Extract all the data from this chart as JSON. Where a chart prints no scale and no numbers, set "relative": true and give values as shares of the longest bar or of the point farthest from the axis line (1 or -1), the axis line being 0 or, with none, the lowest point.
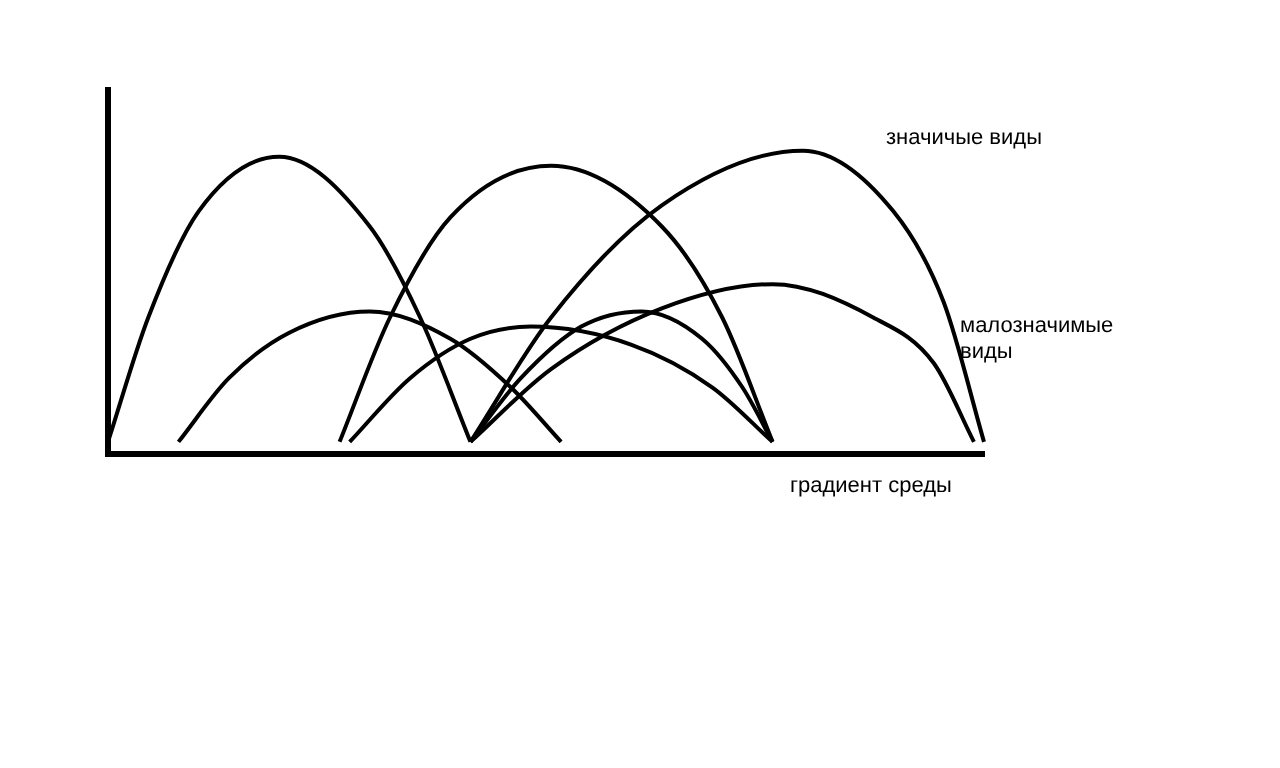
{
  "chart_data": {
    "type": "line",
    "relative": true,
    "xlabel": "градиент среды",
    "annotations": [
      "значичые виды",
      "малозначимые виды"
    ],
    "marker": "none",
    "grid": false,
    "legend": false,
    "categories": [
      null,
      null,
      null,
      null,
      null,
      null,
      null,
      null,
      null,
      null,
      null,
      null,
      null,
      null,
      null,
      null,
      null,
      null,
      null,
      null,
      null,
      null,
      null,
      null,
      null,
      null,
      null,
      null,
      null,
      null,
      null,
      null,
      null,
      null,
      null,
      null,
      null,
      null,
      null,
      null,
      null,
      null,
      null,
      null,
      null,
      null,
      null,
      null,
      null,
      null,
      null,
      null,
      null,
      null,
      null,
      null,
      null,
      null,
      null,
      null,
      null,
      null,
      null,
      null,
      null,
      null,
      null,
      null,
      null,
      null,
      null,
      null,
      null,
      null,
      null,
      null,
      null,
      null,
      null,
      null,
      null,
      null,
      null,
      null,
      null,
      null,
      null,
      null
    ],
    "series": [
      {
        "color": "#000000",
        "values": [
          0.04,
          null,
          null,
          null,
          0.45,
          null,
          null,
          null,
          null,
          0.8,
          null,
          null,
          null,
          null,
          null,
          null,
          null,
          0.98,
          null,
          null,
          null,
          null,
          null,
          null,
          null,
          null,
          0.75,
          null,
          null,
          null,
          null,
          0.45,
          null,
          null,
          null,
          null,
          0.04,
          null,
          null,
          null,
          null,
          null,
          null,
          null,
          null,
          null,
          null,
          null,
          null,
          null,
          null,
          null,
          null,
          null,
          null,
          null,
          null,
          null,
          null,
          null,
          null,
          null,
          null,
          null,
          null,
          null,
          null,
          null,
          null,
          null,
          null,
          null,
          null,
          null,
          null,
          null,
          null,
          null,
          null,
          null,
          null,
          null,
          null,
          null,
          null,
          null,
          null,
          null
        ]
      },
      {
        "color": "#000000",
        "values": [
          null,
          null,
          null,
          null,
          null,
          null,
          null,
          0.04,
          null,
          null,
          null,
          null,
          0.25,
          null,
          null,
          null,
          null,
          null,
          0.4,
          null,
          null,
          null,
          null,
          null,
          null,
          null,
          0.47,
          null,
          null,
          null,
          null,
          null,
          null,
          null,
          0.38,
          null,
          null,
          null,
          null,
          null,
          0.22,
          null,
          null,
          null,
          null,
          0.04,
          null,
          null,
          null,
          null,
          null,
          null,
          null,
          null,
          null,
          null,
          null,
          null,
          null,
          null,
          null,
          null,
          null,
          null,
          null,
          null,
          null,
          null,
          null,
          null,
          null,
          null,
          null,
          null,
          null,
          null,
          null,
          null,
          null,
          null,
          null,
          null,
          null,
          null,
          null,
          null,
          null,
          null
        ]
      },
      {
        "color": "#000000",
        "values": [
          null,
          null,
          null,
          null,
          null,
          null,
          null,
          null,
          null,
          null,
          null,
          null,
          null,
          null,
          null,
          null,
          null,
          null,
          null,
          null,
          null,
          null,
          null,
          0.04,
          null,
          null,
          null,
          null,
          0.45,
          null,
          null,
          null,
          null,
          null,
          0.78,
          null,
          null,
          null,
          null,
          null,
          null,
          null,
          null,
          null,
          0.95,
          null,
          null,
          null,
          null,
          null,
          null,
          null,
          null,
          null,
          null,
          0.75,
          null,
          null,
          null,
          null,
          null,
          0.45,
          null,
          null,
          null,
          null,
          0.04,
          null,
          null,
          null,
          null,
          null,
          null,
          null,
          null,
          null,
          null,
          null,
          null,
          null,
          null,
          null,
          null,
          null,
          null,
          null,
          null,
          null
        ]
      },
      {
        "color": "#000000",
        "values": [
          null,
          null,
          null,
          null,
          null,
          null,
          null,
          null,
          null,
          null,
          null,
          null,
          null,
          null,
          null,
          null,
          null,
          null,
          null,
          null,
          null,
          null,
          null,
          null,
          0.04,
          null,
          null,
          null,
          null,
          null,
          0.25,
          null,
          null,
          null,
          null,
          null,
          0.38,
          null,
          null,
          null,
          null,
          null,
          0.42,
          null,
          null,
          null,
          null,
          null,
          null,
          null,
          null,
          null,
          0.36,
          null,
          null,
          null,
          null,
          null,
          null,
          null,
          0.22,
          null,
          null,
          null,
          null,
          null,
          0.04,
          null,
          null,
          null,
          null,
          null,
          null,
          null,
          null,
          null,
          null,
          null,
          null,
          null,
          null,
          null,
          null,
          null,
          null,
          null,
          null,
          null
        ]
      },
      {
        "color": "#000000",
        "values": [
          null,
          null,
          null,
          null,
          null,
          null,
          null,
          null,
          null,
          null,
          null,
          null,
          null,
          null,
          null,
          null,
          null,
          null,
          null,
          null,
          null,
          null,
          null,
          null,
          null,
          null,
          null,
          null,
          null,
          null,
          null,
          null,
          null,
          null,
          null,
          null,
          0.04,
          null,
          null,
          null,
          null,
          0.25,
          null,
          null,
          null,
          null,
          null,
          0.42,
          null,
          null,
          null,
          null,
          null,
          0.47,
          null,
          null,
          null,
          null,
          null,
          0.38,
          null,
          null,
          null,
          0.22,
          null,
          null,
          0.04,
          null,
          null,
          null,
          null,
          null,
          null,
          null,
          null,
          null,
          null,
          null,
          null,
          null,
          null,
          null,
          null,
          null,
          null,
          null,
          null,
          null
        ]
      },
      {
        "color": "#000000",
        "values": [
          null,
          null,
          null,
          null,
          null,
          null,
          null,
          null,
          null,
          null,
          null,
          null,
          null,
          null,
          null,
          null,
          null,
          null,
          null,
          null,
          null,
          null,
          null,
          null,
          null,
          null,
          null,
          null,
          null,
          null,
          null,
          null,
          null,
          null,
          null,
          null,
          0.04,
          null,
          null,
          null,
          null,
          null,
          null,
          null,
          0.28,
          null,
          null,
          null,
          null,
          null,
          null,
          null,
          null,
          null,
          null,
          0.48,
          null,
          null,
          null,
          null,
          null,
          null,
          null,
          null,
          null,
          null,
          0.56,
          null,
          null,
          null,
          null,
          null,
          null,
          null,
          null,
          null,
          0.45,
          null,
          null,
          null,
          null,
          null,
          0.3,
          null,
          null,
          null,
          0.04,
          null
        ]
      },
      {
        "color": "#000000",
        "values": [
          null,
          null,
          null,
          null,
          null,
          null,
          null,
          null,
          null,
          null,
          null,
          null,
          null,
          null,
          null,
          null,
          null,
          null,
          null,
          null,
          null,
          null,
          null,
          null,
          null,
          null,
          null,
          null,
          null,
          null,
          null,
          null,
          null,
          null,
          null,
          null,
          0.04,
          null,
          null,
          null,
          null,
          null,
          null,
          null,
          0.45,
          null,
          null,
          null,
          null,
          null,
          null,
          null,
          null,
          null,
          null,
          0.82,
          null,
          null,
          null,
          null,
          null,
          null,
          null,
          null,
          null,
          null,
          null,
          null,
          null,
          1,
          null,
          null,
          null,
          null,
          null,
          null,
          null,
          null,
          0.8,
          null,
          null,
          null,
          null,
          0.5,
          null,
          null,
          null,
          0.04
        ]
      }
    ]
  }
}
